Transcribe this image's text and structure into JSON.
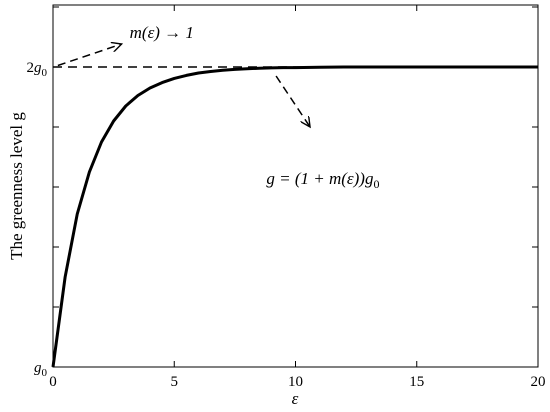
{
  "chart_data": {
    "type": "line",
    "title": "",
    "xlabel": "ε",
    "ylabel": "The greenness level g",
    "xlim": [
      0,
      20
    ],
    "ylim": [
      0,
      1.2
    ],
    "xticks": [
      0,
      5,
      10,
      15,
      20
    ],
    "xtick_labels": [
      "0",
      "5",
      "10",
      "15",
      "20"
    ],
    "yticks": [
      0,
      1
    ],
    "ytick_labels": [
      "g₀",
      "2g₀"
    ],
    "grid": false,
    "legend": "none",
    "series": [
      {
        "style": "solid",
        "color": "#000000",
        "x": [
          0,
          0.5,
          1,
          1.5,
          2,
          2.5,
          3,
          3.5,
          4,
          4.5,
          5,
          5.5,
          6,
          6.5,
          7,
          7.5,
          8,
          8.5,
          9,
          9.5,
          10,
          11,
          12,
          13,
          14,
          15,
          16,
          17,
          18,
          19,
          20
        ],
        "y": [
          0,
          0.3,
          0.51,
          0.65,
          0.75,
          0.82,
          0.87,
          0.905,
          0.93,
          0.948,
          0.962,
          0.972,
          0.98,
          0.985,
          0.989,
          0.992,
          0.994,
          0.996,
          0.997,
          0.998,
          0.998,
          0.999,
          1,
          1,
          1,
          1,
          1,
          1,
          1,
          1,
          1
        ]
      },
      {
        "style": "dashed",
        "color": "#000000",
        "x": [
          0,
          20
        ],
        "y": [
          1,
          1
        ]
      }
    ],
    "annotations": [
      {
        "id": "ann-limit",
        "text": "m(ε) → 1",
        "at": [
          2.5,
          1.11
        ],
        "arrow_from": [
          0.2,
          1.005
        ]
      },
      {
        "id": "ann-formula",
        "text": "g = (1 + m(ε))g₀",
        "at": [
          8.8,
          0.61
        ],
        "arrow_from": [
          9.2,
          0.97
        ],
        "arrow_to": [
          10.6,
          0.8
        ]
      }
    ]
  }
}
